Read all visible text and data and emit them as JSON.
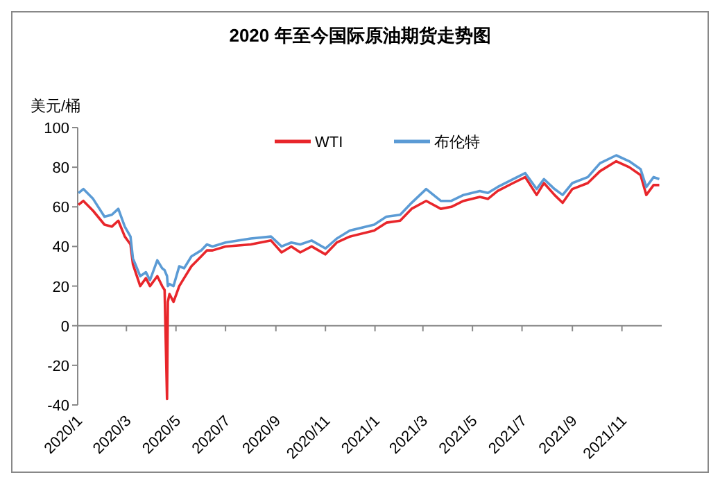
{
  "chart_data": {
    "type": "line",
    "title": "2020 年至今国际原油期货走势图",
    "ylabel": "美元/桶",
    "xlim": [
      "2020-01-01",
      "2021-12-20"
    ],
    "xticks": [
      {
        "value": "2020-01-01",
        "label": "2020/1"
      },
      {
        "value": "2020-03-01",
        "label": "2020/3"
      },
      {
        "value": "2020-05-01",
        "label": "2020/5"
      },
      {
        "value": "2020-07-01",
        "label": "2020/7"
      },
      {
        "value": "2020-09-01",
        "label": "2020/9"
      },
      {
        "value": "2020-11-01",
        "label": "2020/11"
      },
      {
        "value": "2021-01-01",
        "label": "2021/1"
      },
      {
        "value": "2021-03-01",
        "label": "2021/3"
      },
      {
        "value": "2021-05-01",
        "label": "2021/5"
      },
      {
        "value": "2021-07-01",
        "label": "2021/7"
      },
      {
        "value": "2021-09-01",
        "label": "2021/9"
      },
      {
        "value": "2021-11-01",
        "label": "2021/11"
      }
    ],
    "ylim": [
      -40,
      100
    ],
    "yticks": [
      -40,
      -20,
      0,
      20,
      40,
      60,
      80,
      100
    ],
    "legend": "top",
    "line_style": "solid",
    "x": [
      "2020-01-02",
      "2020-01-08",
      "2020-01-20",
      "2020-02-03",
      "2020-02-12",
      "2020-02-20",
      "2020-02-28",
      "2020-03-06",
      "2020-03-09",
      "2020-03-18",
      "2020-03-25",
      "2020-03-30",
      "2020-04-08",
      "2020-04-14",
      "2020-04-17",
      "2020-04-20",
      "2020-04-21",
      "2020-04-23",
      "2020-04-28",
      "2020-05-05",
      "2020-05-11",
      "2020-05-20",
      "2020-06-01",
      "2020-06-08",
      "2020-06-15",
      "2020-07-01",
      "2020-08-01",
      "2020-08-26",
      "2020-09-08",
      "2020-09-20",
      "2020-10-01",
      "2020-10-15",
      "2020-11-01",
      "2020-11-15",
      "2020-12-01",
      "2020-12-31",
      "2021-01-15",
      "2021-02-01",
      "2021-02-15",
      "2021-03-05",
      "2021-03-23",
      "2021-04-05",
      "2021-04-20",
      "2021-05-10",
      "2021-05-20",
      "2021-06-01",
      "2021-06-20",
      "2021-07-05",
      "2021-07-19",
      "2021-07-28",
      "2021-08-10",
      "2021-08-20",
      "2021-09-01",
      "2021-09-20",
      "2021-10-05",
      "2021-10-25",
      "2021-11-10",
      "2021-11-24",
      "2021-12-01",
      "2021-12-10",
      "2021-12-17"
    ],
    "series": [
      {
        "name": "WTI",
        "color": "#e8262b",
        "values": [
          61,
          63,
          58,
          51,
          50,
          53,
          45,
          41,
          31,
          20,
          24,
          20,
          25,
          20,
          18,
          -37,
          12,
          16,
          12,
          20,
          24,
          30,
          35,
          38,
          38,
          40,
          41,
          43,
          37,
          40,
          37,
          40,
          36,
          42,
          45,
          48,
          52,
          53,
          59,
          63,
          59,
          60,
          63,
          65,
          64,
          68,
          72,
          75,
          66,
          72,
          66,
          62,
          69,
          72,
          78,
          83,
          80,
          76,
          66,
          71,
          71
        ]
      },
      {
        "name": "布伦特",
        "color": "#5b9bd5",
        "values": [
          67,
          69,
          64,
          55,
          56,
          59,
          50,
          45,
          34,
          25,
          27,
          23,
          33,
          29,
          28,
          25,
          20,
          21,
          20,
          30,
          29,
          35,
          38,
          41,
          40,
          42,
          44,
          45,
          40,
          42,
          41,
          43,
          39,
          44,
          48,
          51,
          55,
          56,
          62,
          69,
          63,
          63,
          66,
          68,
          67,
          70,
          74,
          77,
          69,
          74,
          69,
          66,
          72,
          75,
          82,
          86,
          83,
          79,
          70,
          75,
          74
        ]
      }
    ]
  }
}
